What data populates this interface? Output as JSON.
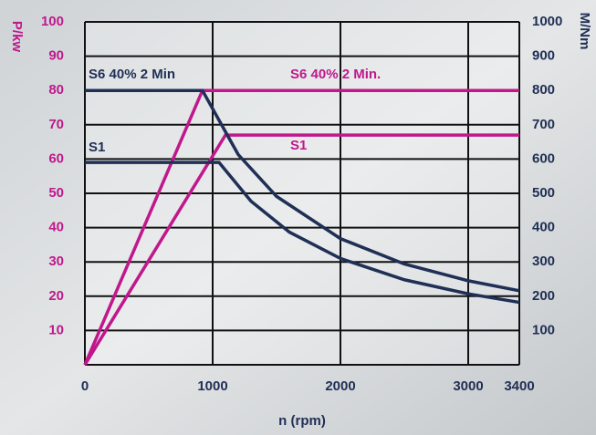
{
  "chart_data": {
    "type": "line",
    "xlabel": "n (rpm)",
    "ylabel": "P/kw",
    "y2label": "M/Nm",
    "xlim": [
      0,
      3400
    ],
    "xticks": [
      0,
      1000,
      2000,
      3000,
      3400
    ],
    "ylim": [
      0,
      100
    ],
    "yticks": [
      10,
      20,
      30,
      40,
      50,
      60,
      70,
      80,
      90,
      100
    ],
    "y2lim": [
      0,
      1000
    ],
    "y2ticks": [
      100,
      200,
      300,
      400,
      500,
      600,
      700,
      800,
      900,
      1000
    ],
    "grid": true,
    "series": [
      {
        "name": "S6 40% 2 Min.",
        "color": "#c0188c",
        "x": [
          0,
          920,
          3400
        ],
        "values": [
          0,
          80,
          80
        ]
      },
      {
        "name": "S1",
        "color": "#c0188c",
        "x": [
          0,
          1100,
          3400
        ],
        "values": [
          0,
          67,
          67
        ]
      },
      {
        "name": "S6 40% 2 Min",
        "color": "#1f2f55",
        "axis": "y2",
        "x": [
          0,
          920,
          1200,
          1500,
          2000,
          2500,
          3000,
          3400
        ],
        "values": [
          800,
          800,
          613,
          491,
          368,
          294,
          245,
          216
        ]
      },
      {
        "name": "S1",
        "color": "#1f2f55",
        "axis": "y2",
        "x": [
          0,
          1050,
          1300,
          1600,
          2000,
          2500,
          3000,
          3400
        ],
        "values": [
          590,
          590,
          477,
          387,
          310,
          248,
          207,
          182
        ]
      }
    ]
  }
}
